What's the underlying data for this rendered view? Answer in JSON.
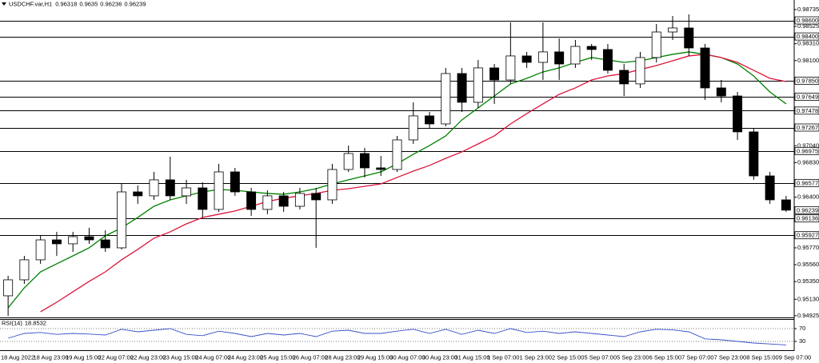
{
  "header": {
    "symbol": "USDCHF.var,H1",
    "open": 0.96318,
    "high": 0.9635,
    "low": 0.96236,
    "close": 0.96239
  },
  "chart_data": [
    {
      "type": "candlestick",
      "categories": [
        "18 Aug 2022",
        null,
        "18 Aug 23:00",
        null,
        "19 Aug 15:00",
        null,
        "22 Aug 07:00",
        null,
        "22 Aug 23:00",
        null,
        "23 Aug 15:00",
        null,
        "24 Aug 07:00",
        null,
        "24 Aug 23:00",
        null,
        "25 Aug 15:00",
        null,
        "26 Aug 07:00",
        null,
        "28 Aug 23:00",
        null,
        "29 Aug 15:00",
        null,
        "30 Aug 07:00",
        null,
        "30 Aug 23:00",
        null,
        "31 Aug 15:00",
        null,
        "1 Sep 07:00",
        null,
        "1 Sep 23:00",
        null,
        "2 Sep 15:00",
        null,
        "5 Sep 07:00",
        null,
        "5 Sep 23:00",
        null,
        "6 Sep 15:00",
        null,
        "7 Sep 07:00",
        null,
        "7 Sep 23:00",
        null,
        "8 Sep 15:00",
        null,
        "9 Sep 07:00"
      ],
      "values": [
        [
          0.95173,
          0.95422,
          0.94924,
          0.95372
        ],
        [
          0.95372,
          0.9567,
          0.95322,
          0.95621
        ],
        [
          0.95621,
          0.95919,
          0.95571,
          0.95869
        ],
        [
          0.95869,
          0.95969,
          0.9567,
          0.9582
        ],
        [
          0.9582,
          0.95969,
          0.9572,
          0.95909
        ],
        [
          0.95909,
          0.96019,
          0.9582,
          0.95869
        ],
        [
          0.95869,
          0.95989,
          0.9572,
          0.9577
        ],
        [
          0.9577,
          0.96566,
          0.9575,
          0.96466
        ],
        [
          0.96466,
          0.96546,
          0.96317,
          0.96417
        ],
        [
          0.96417,
          0.96715,
          0.96367,
          0.96616
        ],
        [
          0.96616,
          0.96904,
          0.96367,
          0.96417
        ],
        [
          0.96417,
          0.96616,
          0.96317,
          0.96516
        ],
        [
          0.96516,
          0.96586,
          0.96148,
          0.96248
        ],
        [
          0.96248,
          0.96815,
          0.96218,
          0.96715
        ],
        [
          0.96715,
          0.96765,
          0.96417,
          0.96466
        ],
        [
          0.96466,
          0.96516,
          0.96168,
          0.96248
        ],
        [
          0.96248,
          0.96486,
          0.96188,
          0.96417
        ],
        [
          0.96417,
          0.96466,
          0.96218,
          0.96287
        ],
        [
          0.96287,
          0.96516,
          0.96248,
          0.96447
        ],
        [
          0.96447,
          0.96516,
          0.9577,
          0.96367
        ],
        [
          0.96367,
          0.96815,
          0.96317,
          0.96745
        ],
        [
          0.96745,
          0.97043,
          0.96715,
          0.96944
        ],
        [
          0.96944,
          0.97014,
          0.96646,
          0.96765
        ],
        [
          0.96765,
          0.96914,
          0.96665,
          0.96745
        ],
        [
          0.96745,
          0.97163,
          0.96715,
          0.97113
        ],
        [
          0.97113,
          0.97581,
          0.97063,
          0.97412
        ],
        [
          0.97412,
          0.97461,
          0.97262,
          0.97312
        ],
        [
          0.97312,
          0.98009,
          0.97282,
          0.97939
        ],
        [
          0.97939,
          0.98009,
          0.97461,
          0.97581
        ],
        [
          0.97581,
          0.98108,
          0.97511,
          0.98009
        ],
        [
          0.98009,
          0.98058,
          0.97561,
          0.97859
        ],
        [
          0.97859,
          0.98576,
          0.9781,
          0.98158
        ],
        [
          0.98158,
          0.98208,
          0.98009,
          0.98078
        ],
        [
          0.98078,
          0.98576,
          0.97859,
          0.98208
        ],
        [
          0.98208,
          0.98377,
          0.97859,
          0.98058
        ],
        [
          0.98058,
          0.98357,
          0.98009,
          0.98277
        ],
        [
          0.98277,
          0.98307,
          0.98108,
          0.98238
        ],
        [
          0.98238,
          0.98307,
          0.97939,
          0.97979
        ],
        [
          0.97979,
          0.98058,
          0.9766,
          0.9781
        ],
        [
          0.9781,
          0.98208,
          0.9776,
          0.98138
        ],
        [
          0.98138,
          0.98556,
          0.98078,
          0.98456
        ],
        [
          0.98456,
          0.98655,
          0.98357,
          0.98506
        ],
        [
          0.98506,
          0.98675,
          0.98158,
          0.98257
        ],
        [
          0.98257,
          0.98307,
          0.97611,
          0.9776
        ],
        [
          0.9776,
          0.97859,
          0.97581,
          0.9766
        ],
        [
          0.9766,
          0.9771,
          0.97113,
          0.97213
        ],
        [
          0.97213,
          0.97262,
          0.96616,
          0.96665
        ],
        [
          0.96665,
          0.96715,
          0.96317,
          0.96367
        ],
        [
          0.96367,
          0.96417,
          0.96218,
          0.96239
        ]
      ],
      "lines": [
        {
          "color": "#008000",
          "values": [
            0.95024,
            0.95272,
            0.95471,
            0.95571,
            0.9567,
            0.9577,
            0.95919,
            0.96019,
            0.96148,
            0.96287,
            0.96367,
            0.96417,
            0.96466,
            0.96496,
            0.96486,
            0.96466,
            0.96447,
            0.96437,
            0.96466,
            0.96506,
            0.96566,
            0.96616,
            0.96665,
            0.96715,
            0.96815,
            0.96934,
            0.97043,
            0.97163,
            0.97362,
            0.97511,
            0.9766,
            0.9781,
            0.97879,
            0.97959,
            0.98009,
            0.98078,
            0.98138,
            0.98108,
            0.98078,
            0.98098,
            0.98138,
            0.98178,
            0.98208,
            0.98178,
            0.98138,
            0.98058,
            0.97909,
            0.9771,
            0.97561
          ]
        },
        {
          "color": "#dc143c",
          "values": [
            null,
            null,
            0.94974,
            0.95093,
            0.95223,
            0.95352,
            0.95471,
            0.95621,
            0.9575,
            0.9589,
            0.95969,
            0.96068,
            0.96148,
            0.96188,
            0.96228,
            0.96287,
            0.96347,
            0.96387,
            0.96417,
            0.96447,
            0.96486,
            0.96506,
            0.96536,
            0.96566,
            0.96646,
            0.96725,
            0.96795,
            0.96884,
            0.96964,
            0.97063,
            0.97163,
            0.97312,
            0.97441,
            0.97561,
            0.9768,
            0.9776,
            0.97859,
            0.97909,
            0.97939,
            0.97989,
            0.98038,
            0.98098,
            0.98158,
            0.98178,
            0.98138,
            0.98078,
            0.97979,
            0.97879,
            0.97839
          ]
        }
      ],
      "levels": [
        {
          "value": 0.986,
          "label": "0.98600"
        },
        {
          "value": 0.984,
          "label": "0.98400"
        },
        {
          "value": 0.9785,
          "label": "0.97850"
        },
        0.97649,
        0.97478,
        0.97267,
        0.96975,
        0.96577,
        0.96136,
        0.95927
      ],
      "ylim": [
        0.94904,
        0.98854
      ],
      "yticks": [
        0.98735,
        0.98525,
        {
          "value": 0.9831,
          "label": "0.98310"
        },
        {
          "value": 0.981,
          "label": "0.98100"
        },
        {
          "value": 0.9704,
          "label": "0.97040"
        },
        {
          "value": 0.9683,
          "label": "0.96830"
        },
        {
          "value": 0.964,
          "label": "0.96400"
        },
        {
          "value": 0.9577,
          "label": "0.95770"
        },
        {
          "value": 0.9556,
          "label": "0.95560"
        },
        {
          "value": 0.9535,
          "label": "0.95350"
        },
        {
          "value": 0.9513,
          "label": "0.95130"
        },
        0.94925
      ]
    },
    {
      "type": "line",
      "title": "RSI(14)",
      "color": "#3a4fc8",
      "values": [
        40,
        55,
        58,
        52,
        55,
        53,
        50,
        68,
        60,
        65,
        70,
        52,
        48,
        62,
        55,
        45,
        55,
        50,
        55,
        45,
        62,
        65,
        55,
        55,
        62,
        68,
        55,
        68,
        52,
        65,
        55,
        70,
        58,
        62,
        55,
        60,
        55,
        50,
        45,
        60,
        68,
        66,
        60,
        38,
        35,
        30,
        25,
        22,
        18.8532
      ],
      "ylim": [
        0,
        100
      ],
      "yticks": [
        70,
        30
      ],
      "grid": true
    }
  ]
}
